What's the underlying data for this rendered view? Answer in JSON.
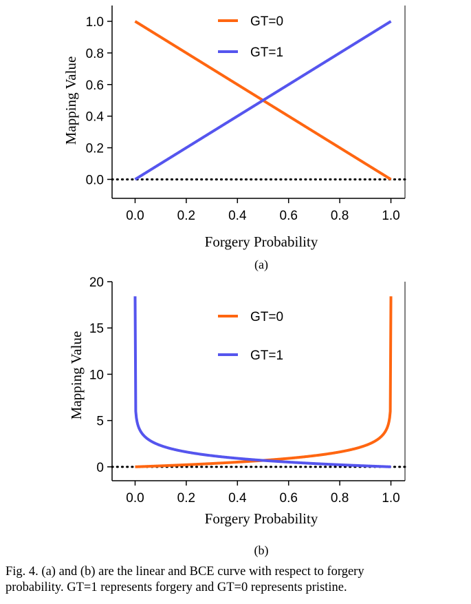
{
  "chart_data": [
    {
      "type": "line",
      "label": "(a)",
      "xlabel": "Forgery Probability",
      "ylabel": "Mapping Value",
      "xlim": [
        -0.09,
        1.055
      ],
      "ylim": [
        -0.12,
        1.1
      ],
      "xticks": [
        0.0,
        0.2,
        0.4,
        0.6,
        0.8,
        1.0
      ],
      "yticks": [
        0.0,
        0.2,
        0.4,
        0.6,
        0.8,
        1.0
      ],
      "xtick_labels": [
        "0.0",
        "0.2",
        "0.4",
        "0.6",
        "0.8",
        "1.0"
      ],
      "ytick_labels": [
        "0.0",
        "0.2",
        "0.4",
        "0.6",
        "0.8",
        "1.0"
      ],
      "reference_line": {
        "y": 0,
        "style": "dotted"
      },
      "legend": "top-center",
      "series": [
        {
          "name": "GT=0",
          "color": "#ff6611",
          "function": "linear_gt0",
          "x": [
            0.0,
            0.2,
            0.4,
            0.6,
            0.8,
            1.0
          ],
          "y": [
            1.0,
            0.8,
            0.6,
            0.4,
            0.2,
            0.0
          ]
        },
        {
          "name": "GT=1",
          "color": "#5555ee",
          "function": "linear_gt1",
          "x": [
            0.0,
            0.2,
            0.4,
            0.6,
            0.8,
            1.0
          ],
          "y": [
            0.0,
            0.2,
            0.4,
            0.6,
            0.8,
            1.0
          ]
        }
      ]
    },
    {
      "type": "line",
      "label": "(b)",
      "xlabel": "Forgery Probability",
      "ylabel": "Mapping Value",
      "xlim": [
        -0.09,
        1.055
      ],
      "ylim": [
        -1.5,
        20
      ],
      "xticks": [
        0.0,
        0.2,
        0.4,
        0.6,
        0.8,
        1.0
      ],
      "yticks": [
        0,
        5,
        10,
        15,
        20
      ],
      "xtick_labels": [
        "0.0",
        "0.2",
        "0.4",
        "0.6",
        "0.8",
        "1.0"
      ],
      "ytick_labels": [
        "0",
        "5",
        "10",
        "15",
        "20"
      ],
      "reference_line": {
        "y": 0,
        "style": "dotted"
      },
      "legend": "top-center",
      "series": [
        {
          "name": "GT=0",
          "color": "#ff6611",
          "function": "bce_gt0",
          "x": [
            0.0,
            0.2,
            0.4,
            0.5,
            0.6,
            0.8,
            0.99,
            1.0
          ],
          "y": [
            0.0,
            0.22,
            0.51,
            0.69,
            0.92,
            1.61,
            4.6,
            18.4
          ]
        },
        {
          "name": "GT=1",
          "color": "#5555ee",
          "function": "bce_gt1",
          "x": [
            0.0,
            0.01,
            0.2,
            0.4,
            0.5,
            0.6,
            0.8,
            1.0
          ],
          "y": [
            18.4,
            4.6,
            1.61,
            0.92,
            0.69,
            0.51,
            0.22,
            0.0
          ]
        }
      ]
    }
  ],
  "caption": {
    "line1": "Fig. 4.    (a) and (b) are the linear and BCE curve with respect to forgery",
    "line2": "probability. GT=1 represents forgery and GT=0 represents pristine."
  }
}
